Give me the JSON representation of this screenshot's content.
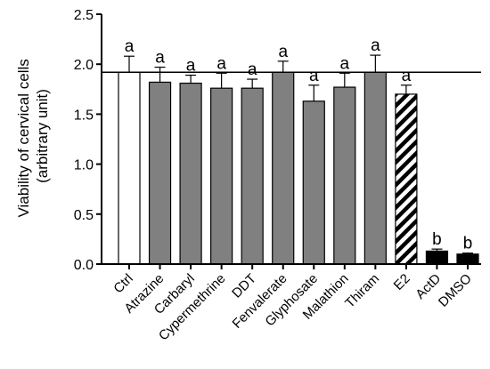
{
  "chart_data": {
    "type": "bar",
    "title": "",
    "ylabel_lines": [
      "Viability of cervical cells",
      "(arbitrary unit)"
    ],
    "xlabel": "",
    "ylim": [
      0,
      2.5
    ],
    "yticks": [
      "0.0",
      "0.5",
      "1.0",
      "1.5",
      "2.0",
      "2.5"
    ],
    "yticks_values": [
      0,
      0.5,
      1.0,
      1.5,
      2.0,
      2.5
    ],
    "categories": [
      "Ctrl",
      "Atrazine",
      "Carbaryl",
      "Cypermethrine",
      "DDT",
      "Fenvalerate",
      "Glyphosate",
      "Malathion",
      "Thiram",
      "E2",
      "ActD",
      "DMSO"
    ],
    "values": [
      1.92,
      1.82,
      1.81,
      1.76,
      1.76,
      1.92,
      1.63,
      1.77,
      1.92,
      1.7,
      0.13,
      0.1
    ],
    "errors": [
      0.16,
      0.15,
      0.08,
      0.15,
      0.09,
      0.11,
      0.16,
      0.14,
      0.17,
      0.09,
      0.02,
      0.01
    ],
    "significance": [
      "a",
      "a",
      "a",
      "a",
      "a",
      "a",
      "a",
      "a",
      "a",
      "a",
      "b",
      "b"
    ],
    "bar_styles": [
      "white",
      "gray",
      "gray",
      "gray",
      "gray",
      "gray",
      "gray",
      "gray",
      "gray",
      "hatched",
      "black",
      "black"
    ],
    "reference_line": 1.92,
    "grid": false,
    "legend": "none",
    "colors": {
      "control_fill": "#ffffff",
      "treatment_fill": "#808080",
      "hatch_fill": "#000000",
      "negative_fill": "#000000",
      "axis": "#000000"
    }
  }
}
